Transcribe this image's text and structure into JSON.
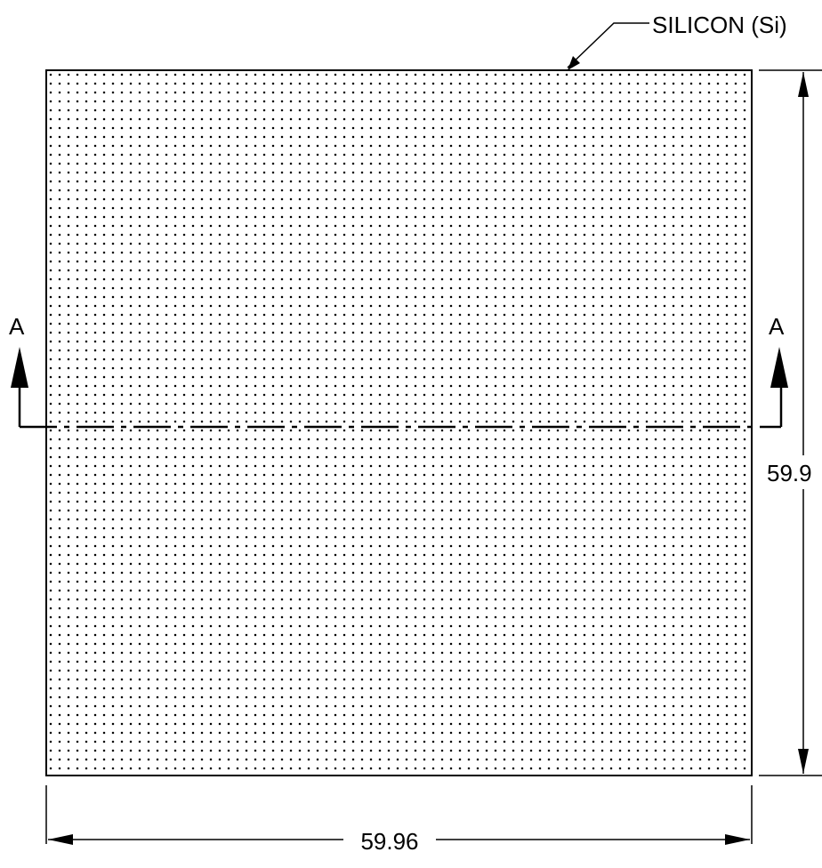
{
  "material": {
    "label": "SILICON (Si)"
  },
  "section": {
    "left_label": "A",
    "right_label": "A"
  },
  "dimensions": {
    "height_label": "59.9",
    "width_label": "59.96"
  }
}
